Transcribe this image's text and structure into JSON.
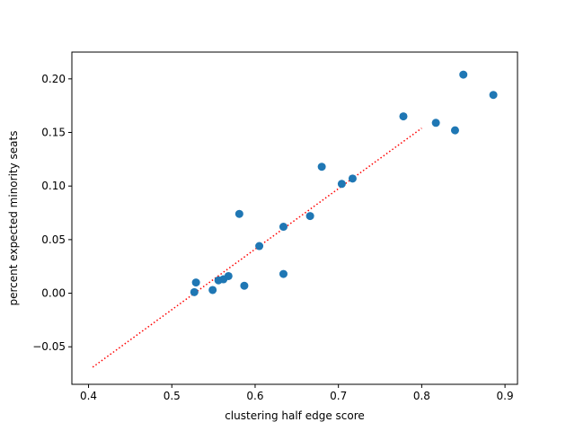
{
  "chart_data": {
    "type": "scatter",
    "title": "",
    "xlabel": "clustering half edge score",
    "ylabel": "percent expected minority seats",
    "xlim": [
      0.38,
      0.915
    ],
    "ylim": [
      -0.085,
      0.225
    ],
    "xticks": [
      0.4,
      0.5,
      0.6,
      0.7,
      0.8,
      0.9
    ],
    "xtick_labels": [
      "0.4",
      "0.5",
      "0.6",
      "0.7",
      "0.8",
      "0.9"
    ],
    "yticks": [
      -0.05,
      0.0,
      0.05,
      0.1,
      0.15,
      0.2
    ],
    "ytick_labels": [
      "−0.05",
      "0.00",
      "0.05",
      "0.10",
      "0.15",
      "0.20"
    ],
    "grid": false,
    "legend": false,
    "point_color": "#1f77b4",
    "series": [
      {
        "values": [
          {
            "x": 0.527,
            "y": 0.001
          },
          {
            "x": 0.529,
            "y": 0.01
          },
          {
            "x": 0.549,
            "y": 0.003
          },
          {
            "x": 0.556,
            "y": 0.012
          },
          {
            "x": 0.562,
            "y": 0.013
          },
          {
            "x": 0.568,
            "y": 0.016
          },
          {
            "x": 0.581,
            "y": 0.074
          },
          {
            "x": 0.587,
            "y": 0.007
          },
          {
            "x": 0.605,
            "y": 0.044
          },
          {
            "x": 0.634,
            "y": 0.062
          },
          {
            "x": 0.634,
            "y": 0.018
          },
          {
            "x": 0.666,
            "y": 0.072
          },
          {
            "x": 0.68,
            "y": 0.118
          },
          {
            "x": 0.704,
            "y": 0.102
          },
          {
            "x": 0.717,
            "y": 0.107
          },
          {
            "x": 0.778,
            "y": 0.165
          },
          {
            "x": 0.817,
            "y": 0.159
          },
          {
            "x": 0.84,
            "y": 0.152
          },
          {
            "x": 0.85,
            "y": 0.204
          },
          {
            "x": 0.886,
            "y": 0.185
          }
        ]
      }
    ],
    "fit_line": {
      "style": "dotted",
      "color": "#ff0000",
      "points": [
        {
          "x": 0.405,
          "y": -0.069
        },
        {
          "x": 0.8,
          "y": 0.154
        }
      ]
    }
  }
}
